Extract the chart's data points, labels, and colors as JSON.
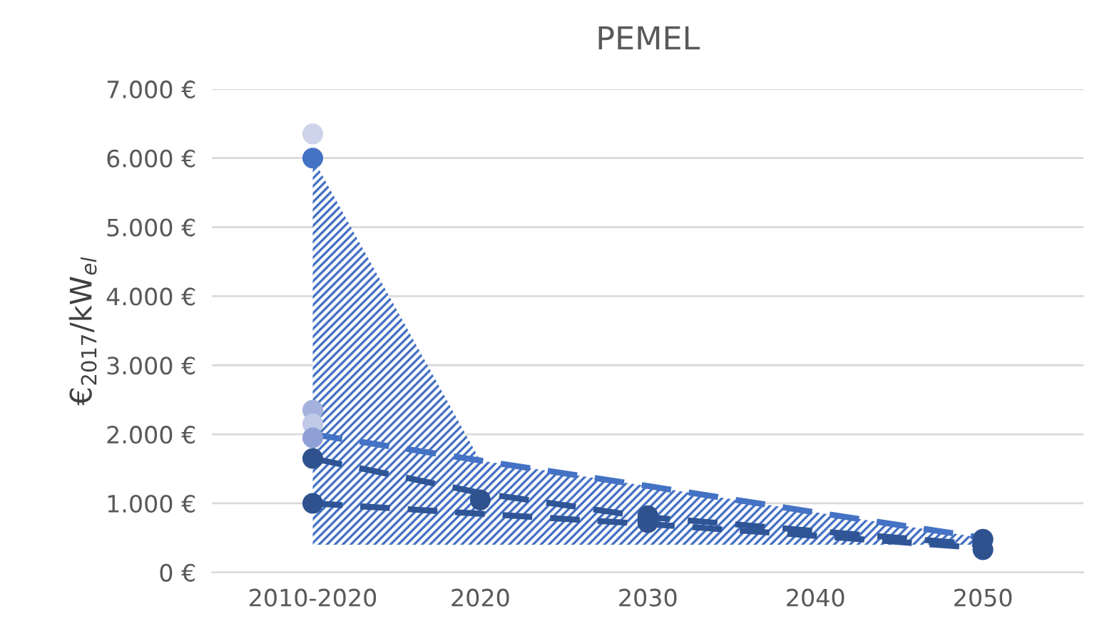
{
  "chart_data": {
    "type": "line",
    "title": "PEMEL",
    "ylabel": "€$_{2017}$/kW$_{el}$",
    "categories": [
      "2010-2020",
      "2020",
      "2030",
      "2040",
      "2050"
    ],
    "series": [
      {
        "type": "line",
        "color": "#4472c4",
        "line_style": "dashed",
        "values": [
          2000,
          1620,
          1250,
          870,
          500
        ],
        "lower": [
          400,
          400,
          400,
          400,
          400
        ],
        "upper": [
          6000,
          1620,
          1250,
          870,
          500
        ]
      },
      {
        "color": "#2f5597",
        "line_style": "dashed",
        "values": [
          1650,
          1150,
          800,
          600,
          400
        ]
      },
      {
        "color": "#2f5597",
        "line_style": "dashed",
        "values": [
          1000,
          850,
          700,
          530,
          350
        ]
      },
      {
        "type": "scatter",
        "marker": "circle",
        "values": [
          6350,
          1050,
          820,
          null,
          480
        ],
        "colors": [
          "#ccd3ea",
          "#2f528f",
          "#2f528f",
          null,
          "#2f528f"
        ]
      },
      {
        "type": "scatter",
        "marker": "circle",
        "values": [
          6000,
          null,
          720,
          null,
          330
        ],
        "colors": [
          "#4472c4",
          null,
          "#2f528f",
          null,
          "#2f528f"
        ]
      },
      {
        "type": "scatter",
        "marker": "circle",
        "color": "#a3b1dc",
        "values": [
          2350,
          null,
          null,
          null,
          null
        ]
      },
      {
        "type": "scatter",
        "marker": "circle",
        "color": "#c0c9e6",
        "values": [
          2150,
          null,
          null,
          null,
          null
        ]
      },
      {
        "type": "scatter",
        "marker": "circle",
        "color": "#8ea0d6",
        "values": [
          1950,
          null,
          null,
          null,
          null
        ]
      },
      {
        "type": "scatter",
        "marker": "circle",
        "color": "#2f528f",
        "values": [
          1650,
          null,
          null,
          null,
          null
        ]
      },
      {
        "type": "scatter",
        "marker": "circle",
        "color": "#2f528f",
        "values": [
          1000,
          null,
          null,
          null,
          null
        ]
      }
    ],
    "ylim": [
      0,
      7000
    ],
    "yticks": [
      {
        "value": 0,
        "label": "0 €"
      },
      {
        "value": 1000,
        "label": "1.000 €"
      },
      {
        "value": 2000,
        "label": "2.000 €"
      },
      {
        "value": 3000,
        "label": "3.000 €"
      },
      {
        "value": 4000,
        "label": "4.000 €"
      },
      {
        "value": 5000,
        "label": "5.000 €"
      },
      {
        "value": 6000,
        "label": "6.000 €"
      },
      {
        "value": 7000,
        "label": "7.000 €"
      }
    ],
    "grid": "y",
    "legend": false
  }
}
